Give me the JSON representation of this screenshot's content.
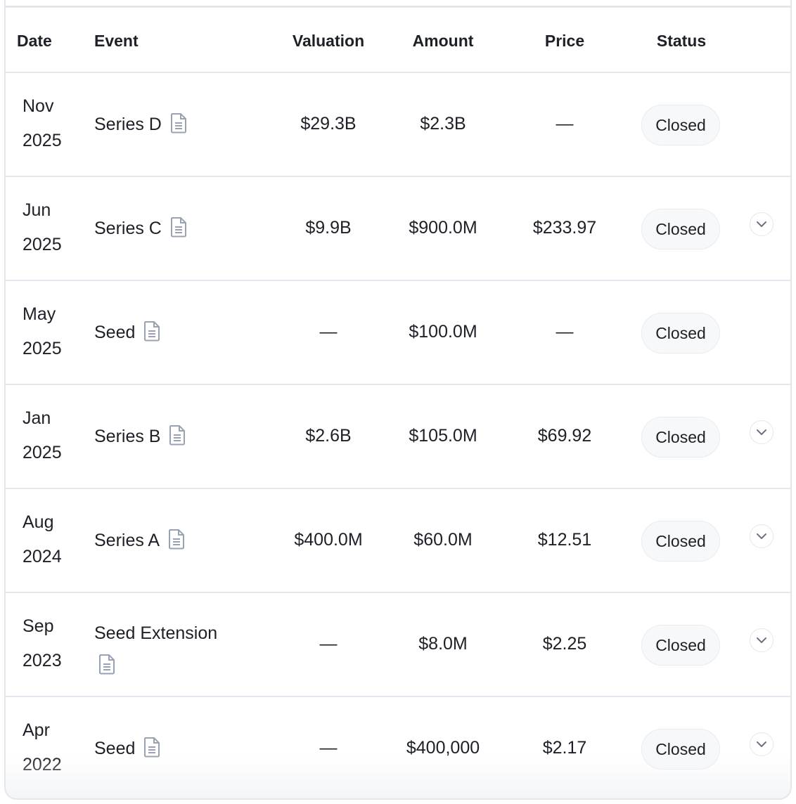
{
  "headers": {
    "date": "Date",
    "event": "Event",
    "valuation": "Valuation",
    "amount": "Amount",
    "price": "Price",
    "status": "Status"
  },
  "rows": [
    {
      "month": "Nov",
      "year": "2025",
      "event": "Series D",
      "valuation": "$29.3B",
      "amount": "$2.3B",
      "price": "—",
      "status": "Closed",
      "expandable": false
    },
    {
      "month": "Jun",
      "year": "2025",
      "event": "Series C",
      "valuation": "$9.9B",
      "amount": "$900.0M",
      "price": "$233.97",
      "status": "Closed",
      "expandable": true
    },
    {
      "month": "May",
      "year": "2025",
      "event": "Seed",
      "valuation": "—",
      "amount": "$100.0M",
      "price": "—",
      "status": "Closed",
      "expandable": false
    },
    {
      "month": "Jan",
      "year": "2025",
      "event": "Series B",
      "valuation": "$2.6B",
      "amount": "$105.0M",
      "price": "$69.92",
      "status": "Closed",
      "expandable": true
    },
    {
      "month": "Aug",
      "year": "2024",
      "event": "Series A",
      "valuation": "$400.0M",
      "amount": "$60.0M",
      "price": "$12.51",
      "status": "Closed",
      "expandable": true
    },
    {
      "month": "Sep",
      "year": "2023",
      "event": "Seed Extension",
      "valuation": "—",
      "amount": "$8.0M",
      "price": "$2.25",
      "status": "Closed",
      "expandable": true
    },
    {
      "month": "Apr",
      "year": "2022",
      "event": "Seed",
      "valuation": "—",
      "amount": "$400,000",
      "price": "$2.17",
      "status": "Closed",
      "expandable": true
    }
  ]
}
